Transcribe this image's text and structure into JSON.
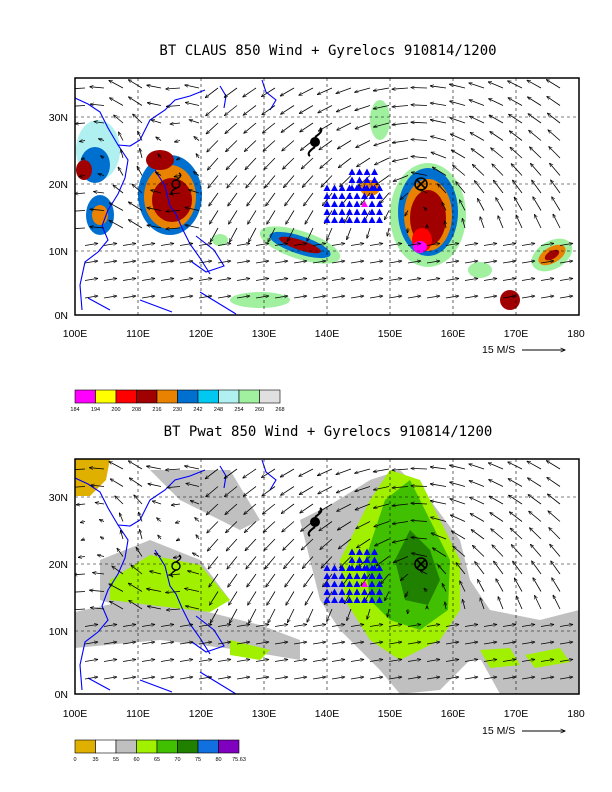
{
  "map1": {
    "title": "BT CLAUS 850 Wind + Gyrelocs 910814/1200",
    "lat_labels": [
      "30N",
      "20N",
      "10N",
      "0N"
    ],
    "lon_labels": [
      "100E",
      "110E",
      "120E",
      "130E",
      "140E",
      "150E",
      "160E",
      "170E",
      "180"
    ],
    "ref_vector_label": "15 M/S",
    "legend": {
      "labels": [
        "184",
        "194",
        "200",
        "208",
        "216",
        "230",
        "242",
        "248",
        "254",
        "260",
        "268"
      ],
      "colors": [
        "#ff00ff",
        "#ffff00",
        "#ff0000",
        "#a00000",
        "#e88200",
        "#0070d0",
        "#00c8f0",
        "#b0f0f0",
        "#a0f0a0",
        "#e0e0e0"
      ]
    }
  },
  "map2": {
    "title": "BT Pwat 850 Wind + Gyrelocs 910814/1200",
    "lat_labels": [
      "30N",
      "20N",
      "10N",
      "0N"
    ],
    "lon_labels": [
      "100E",
      "110E",
      "120E",
      "130E",
      "140E",
      "150E",
      "160E",
      "170E",
      "180"
    ],
    "ref_vector_label": "15 M/S",
    "legend": {
      "labels": [
        "0",
        "35",
        "55",
        "60",
        "65",
        "70",
        "75",
        "80",
        "75.63"
      ],
      "colors": [
        "#e0b000",
        "#ffffff",
        "#c0c0c0",
        "#a0f000",
        "#40c000",
        "#208000",
        "#1070e0",
        "#8000c0"
      ]
    }
  },
  "colors": {
    "coast": "#0000ff",
    "triangle": "#0000ff",
    "triangle_center": "#ff00ff",
    "frame": "#000000"
  },
  "icons": {
    "cyclone": "cyclone-symbol-icon",
    "gyre": "gyre-center-icon"
  }
}
